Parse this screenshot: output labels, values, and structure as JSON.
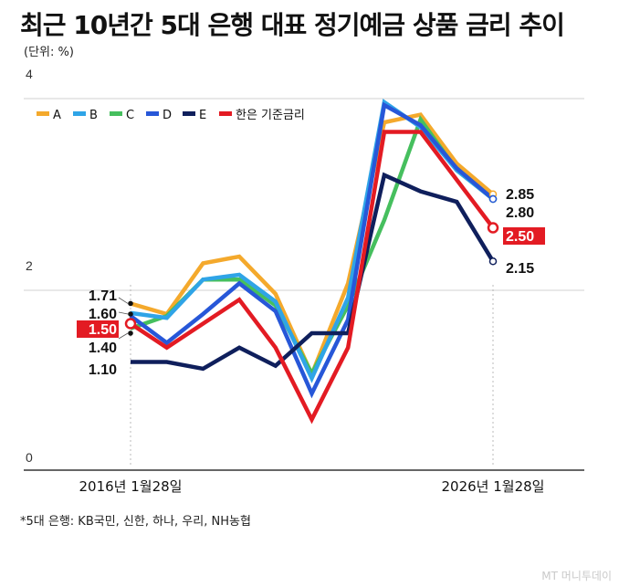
{
  "title": "최근 10년간 5대 은행 대표 정기예금 상품 금리 추이",
  "unit": "(단위: %)",
  "footnote": "*5대 은행: KB국민, 신한, 하나, 우리, NH농협",
  "credit": "MT 머니투데이",
  "colors": {
    "A": "#f4a92c",
    "B": "#2fa4e7",
    "C": "#46bf5e",
    "D": "#2757d8",
    "E": "#0f1f5c",
    "base_rate": "#e31b23",
    "grid": "#d0d0d0",
    "axis": "#333333"
  },
  "chart_data": {
    "type": "line",
    "x_labels": [
      "2016년 1월28일",
      "2026년 1월28일"
    ],
    "y_ticks": [
      0,
      2,
      4
    ],
    "ylim": [
      0,
      4
    ],
    "legend_position": "top-left",
    "start_labels": [
      "1.71",
      "1.60",
      "1.50",
      "1.40",
      "1.10"
    ],
    "end_labels": [
      "2.85",
      "2.80",
      "2.50",
      "2.15"
    ],
    "series": [
      {
        "name": "A",
        "color_key": "A",
        "values": [
          1.71,
          1.6,
          2.13,
          2.2,
          1.81,
          0.97,
          1.92,
          3.6,
          3.68,
          3.17,
          2.85
        ]
      },
      {
        "name": "B",
        "color_key": "B",
        "values": [
          1.61,
          1.56,
          1.96,
          2.01,
          1.73,
          0.93,
          1.77,
          3.81,
          3.55,
          3.1,
          2.8
        ]
      },
      {
        "name": "C",
        "color_key": "C",
        "values": [
          1.45,
          1.58,
          1.96,
          1.96,
          1.69,
          0.98,
          1.69,
          2.58,
          3.63,
          3.1,
          2.8
        ]
      },
      {
        "name": "D",
        "color_key": "D",
        "values": [
          1.58,
          1.3,
          1.6,
          1.92,
          1.63,
          0.77,
          1.54,
          3.78,
          3.57,
          3.12,
          2.8
        ]
      },
      {
        "name": "E",
        "color_key": "E",
        "values": [
          1.1,
          1.1,
          1.03,
          1.25,
          1.06,
          1.4,
          1.4,
          3.05,
          2.88,
          2.77,
          2.15
        ]
      },
      {
        "name": "한은 기준금리",
        "color_key": "base_rate",
        "values": [
          1.5,
          1.25,
          1.5,
          1.75,
          1.25,
          0.5,
          1.25,
          3.5,
          3.5,
          3.0,
          2.5
        ]
      }
    ]
  }
}
